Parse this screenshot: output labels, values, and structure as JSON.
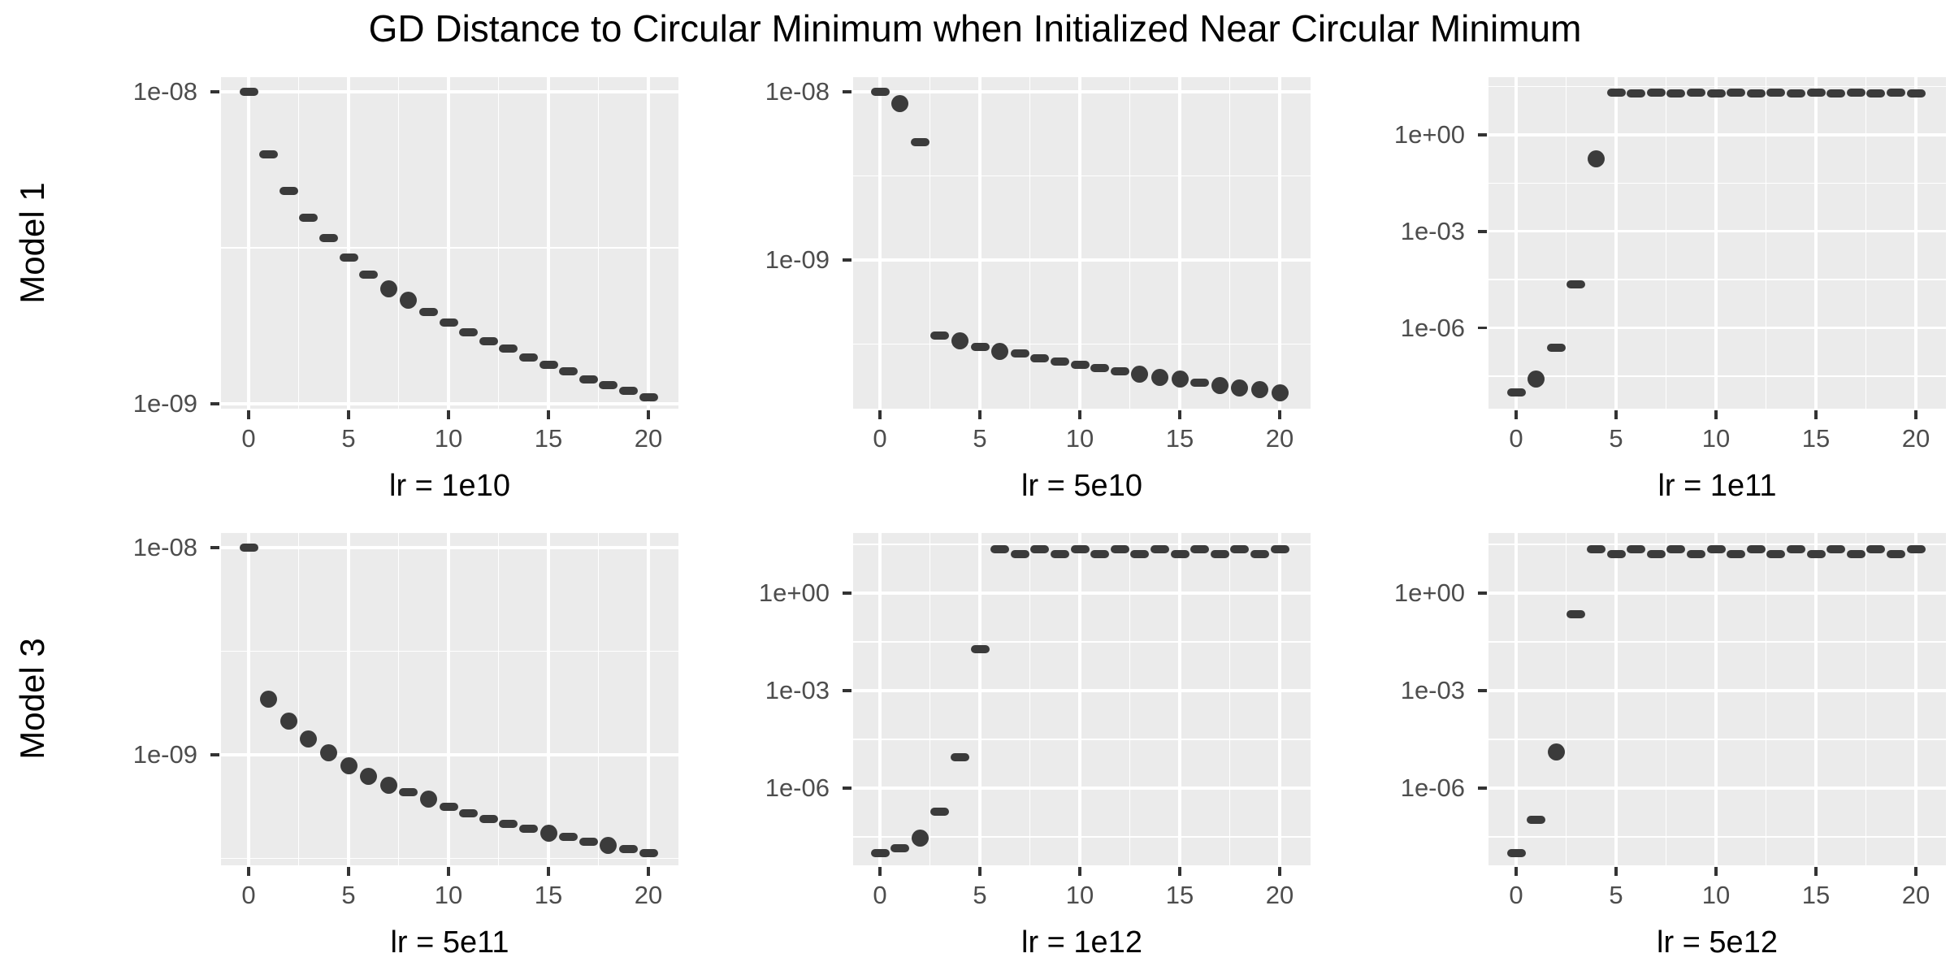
{
  "title": "GD Distance to Circular Minimum when Initialized Near Circular Minimum",
  "row_labels": [
    "Model 1",
    "Model 3"
  ],
  "colors": {
    "background": "#FFFFFF",
    "panel_background": "#EBEBEB",
    "gridline": "#FFFFFF",
    "point": "#3B3B3B",
    "tick_label": "#4D4D4D",
    "tick_mark": "#333333",
    "title_text": "#000000"
  },
  "chart_data": {
    "type": "scatter",
    "title": "GD Distance to Circular Minimum when Initialized Near Circular Minimum",
    "grid": "on",
    "legend": "none",
    "y_scale": "log10",
    "x_ticks": [
      "0",
      "5",
      "10",
      "15",
      "20"
    ],
    "x_tick_values": [
      0,
      5,
      10,
      15,
      20
    ],
    "x_minor_values": [
      2.5,
      7.5,
      12.5,
      17.5
    ],
    "xlim": [
      -1.4,
      21.4
    ],
    "panels": [
      {
        "row_label": "Model 1",
        "xlabel": "lr = 1e10",
        "y_tick_labels": [
          "1e-08",
          "1e-09"
        ],
        "y_tick_values": [
          1e-08,
          1e-09
        ],
        "y_minor_values": [
          3.162e-09
        ],
        "ylim": [
          9.1e-10,
          1.12e-08
        ],
        "x": [
          0,
          1,
          2,
          3,
          4,
          5,
          6,
          7,
          8,
          9,
          10,
          11,
          12,
          13,
          14,
          15,
          16,
          17,
          18,
          19,
          20
        ],
        "y": [
          1e-08,
          6.3e-09,
          4.8e-09,
          3.95e-09,
          3.4e-09,
          2.95e-09,
          2.6e-09,
          2.33e-09,
          2.15e-09,
          1.97e-09,
          1.82e-09,
          1.7e-09,
          1.59e-09,
          1.5e-09,
          1.41e-09,
          1.33e-09,
          1.27e-09,
          1.2e-09,
          1.15e-09,
          1.1e-09,
          1.05e-09
        ],
        "marker": [
          "dash",
          "dash",
          "dash",
          "dash",
          "dash",
          "dash",
          "dash",
          "dot",
          "dot",
          "dash",
          "dash",
          "dash",
          "dash",
          "dash",
          "dash",
          "dash",
          "dash",
          "dash",
          "dash",
          "dash",
          "dash"
        ]
      },
      {
        "row_label": "Model 1",
        "xlabel": "lr = 5e10",
        "y_tick_labels": [
          "1e-08",
          "1e-09"
        ],
        "y_tick_values": [
          1e-08,
          1e-09
        ],
        "y_minor_values": [
          3.162e-09,
          3.162e-10
        ],
        "ylim": [
          1.3e-10,
          1.22e-08
        ],
        "x": [
          0,
          1,
          2,
          3,
          4,
          5,
          6,
          7,
          8,
          9,
          10,
          11,
          12,
          13,
          14,
          15,
          16,
          17,
          18,
          19,
          20
        ],
        "y": [
          1e-08,
          8.5e-09,
          5e-09,
          3.55e-10,
          3.3e-10,
          3.05e-10,
          2.86e-10,
          2.77e-10,
          2.6e-10,
          2.48e-10,
          2.38e-10,
          2.29e-10,
          2.18e-10,
          2.1e-10,
          2e-10,
          1.96e-10,
          1.86e-10,
          1.8e-10,
          1.74e-10,
          1.69e-10,
          1.62e-10
        ],
        "marker": [
          "dash",
          "dot",
          "dash",
          "dash",
          "dot",
          "dash",
          "dot",
          "dash",
          "dash",
          "dash",
          "dash",
          "dash",
          "dash",
          "dot",
          "dot",
          "dot",
          "dash",
          "dot",
          "dot",
          "dot",
          "dot"
        ]
      },
      {
        "row_label": "Model 1",
        "xlabel": "lr = 1e11",
        "y_tick_labels": [
          "1e+00",
          "1e-03",
          "1e-06"
        ],
        "y_tick_values": [
          1,
          0.001,
          1e-06
        ],
        "y_minor_values": [
          31.62,
          0.03162,
          3.162e-05,
          3.162e-08
        ],
        "ylim": [
          3e-09,
          62
        ],
        "x": [
          0,
          1,
          2,
          3,
          4,
          5,
          6,
          7,
          8,
          9,
          10,
          11,
          12,
          13,
          14,
          15,
          16,
          17,
          18,
          19,
          20
        ],
        "y": [
          1e-08,
          2.6e-08,
          2.4e-07,
          2.2e-05,
          0.18,
          20.5,
          19.5,
          20.5,
          19.5,
          20.5,
          19.5,
          20.5,
          19.5,
          20.5,
          19.5,
          20.5,
          19.5,
          20.5,
          19.5,
          20.5,
          19.5
        ],
        "marker": [
          "dash",
          "dot",
          "dash",
          "dash",
          "dot",
          "dash",
          "dash",
          "dash",
          "dash",
          "dash",
          "dash",
          "dash",
          "dash",
          "dash",
          "dash",
          "dash",
          "dash",
          "dash",
          "dash",
          "dash",
          "dash"
        ]
      },
      {
        "row_label": "Model 3",
        "xlabel": "lr = 5e11",
        "y_tick_labels": [
          "1e-08",
          "1e-09"
        ],
        "y_tick_values": [
          1e-08,
          1e-09
        ],
        "y_minor_values": [
          3.162e-09,
          3.162e-10
        ],
        "ylim": [
          2.9e-10,
          1.18e-08
        ],
        "x": [
          0,
          1,
          2,
          3,
          4,
          5,
          6,
          7,
          8,
          9,
          10,
          11,
          12,
          13,
          14,
          15,
          16,
          17,
          18,
          19,
          20
        ],
        "y": [
          1e-08,
          1.86e-09,
          1.45e-09,
          1.19e-09,
          1.02e-09,
          8.85e-10,
          7.9e-10,
          7.1e-10,
          6.6e-10,
          6.1e-10,
          5.6e-10,
          5.2e-10,
          4.9e-10,
          4.65e-10,
          4.4e-10,
          4.2e-10,
          4e-10,
          3.8e-10,
          3.65e-10,
          3.5e-10,
          3.35e-10
        ],
        "marker": [
          "dash",
          "dot",
          "dot",
          "dot",
          "dot",
          "dot",
          "dot",
          "dot",
          "dash",
          "dot",
          "dash",
          "dash",
          "dash",
          "dash",
          "dash",
          "dot",
          "dash",
          "dash",
          "dot",
          "dash",
          "dash"
        ]
      },
      {
        "row_label": "Model 3",
        "xlabel": "lr = 1e12",
        "y_tick_labels": [
          "1e+00",
          "1e-03",
          "1e-06"
        ],
        "y_tick_values": [
          1,
          0.001,
          1e-06
        ],
        "y_minor_values": [
          31.62,
          0.03162,
          3.162e-05,
          3.162e-08
        ],
        "ylim": [
          4e-09,
          68
        ],
        "x": [
          0,
          1,
          2,
          3,
          4,
          5,
          6,
          7,
          8,
          9,
          10,
          11,
          12,
          13,
          14,
          15,
          16,
          17,
          18,
          19,
          20
        ],
        "y": [
          1e-08,
          1.45e-08,
          2.9e-08,
          1.9e-07,
          8.9e-06,
          0.019,
          22,
          16,
          22,
          16,
          22,
          16,
          22,
          16,
          22,
          16,
          22,
          16,
          22,
          16,
          22
        ],
        "marker": [
          "dash",
          "dash",
          "dot",
          "dash",
          "dash",
          "dash",
          "dash",
          "dash",
          "dash",
          "dash",
          "dash",
          "dash",
          "dash",
          "dash",
          "dash",
          "dash",
          "dash",
          "dash",
          "dash",
          "dash",
          "dash"
        ]
      },
      {
        "row_label": "Model 3",
        "xlabel": "lr = 5e12",
        "y_tick_labels": [
          "1e+00",
          "1e-03",
          "1e-06"
        ],
        "y_tick_values": [
          1,
          0.001,
          1e-06
        ],
        "y_minor_values": [
          31.62,
          0.03162,
          3.162e-05,
          3.162e-08
        ],
        "ylim": [
          4e-09,
          68
        ],
        "x": [
          0,
          1,
          2,
          3,
          4,
          5,
          6,
          7,
          8,
          9,
          10,
          11,
          12,
          13,
          14,
          15,
          16,
          17,
          18,
          19,
          20
        ],
        "y": [
          1e-08,
          1.05e-07,
          1.3e-05,
          0.22,
          22,
          16,
          22,
          16,
          22,
          16,
          22,
          16,
          22,
          16,
          22,
          16,
          22,
          16,
          22,
          16,
          22
        ],
        "marker": [
          "dash",
          "dash",
          "dot",
          "dash",
          "dash",
          "dash",
          "dash",
          "dash",
          "dash",
          "dash",
          "dash",
          "dash",
          "dash",
          "dash",
          "dash",
          "dash",
          "dash",
          "dash",
          "dash",
          "dash",
          "dash"
        ]
      }
    ]
  }
}
